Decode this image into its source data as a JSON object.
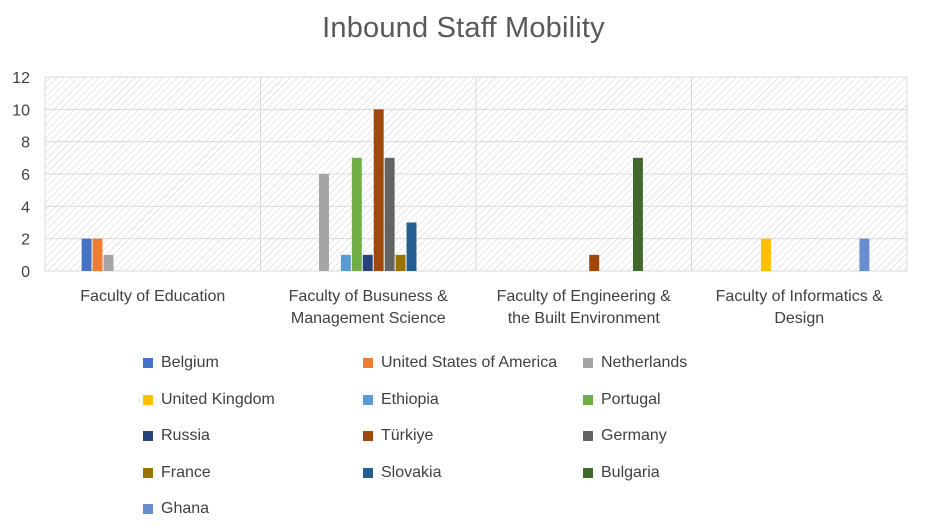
{
  "chart_data": {
    "type": "bar",
    "title": "Inbound Staff Mobility",
    "xlabel": "",
    "ylabel": "",
    "ylim": [
      0,
      12
    ],
    "yticks": [
      0,
      2,
      4,
      6,
      8,
      10,
      12
    ],
    "grid": true,
    "legend_position": "bottom",
    "categories": [
      "Faculty of Education",
      "Faculty of Busuness & Management Science",
      "Faculty of Engineering & the Built Environment",
      "Faculty of Informatics & Design"
    ],
    "series": [
      {
        "name": "Belgium",
        "color": "#4472C4",
        "values": [
          2,
          0,
          0,
          0
        ]
      },
      {
        "name": "United States of America",
        "color": "#ED7D31",
        "values": [
          2,
          0,
          0,
          0
        ]
      },
      {
        "name": "Netherlands",
        "color": "#A5A5A5",
        "values": [
          1,
          6,
          0,
          0
        ]
      },
      {
        "name": "United Kingdom",
        "color": "#FFC000",
        "values": [
          0,
          0,
          0,
          2
        ]
      },
      {
        "name": "Ethiopia",
        "color": "#5B9BD5",
        "values": [
          0,
          1,
          0,
          0
        ]
      },
      {
        "name": "Portugal",
        "color": "#70AD47",
        "values": [
          0,
          7,
          0,
          0
        ]
      },
      {
        "name": "Russia",
        "color": "#264478",
        "values": [
          0,
          1,
          0,
          0
        ]
      },
      {
        "name": "Türkiye",
        "color": "#9E480E",
        "values": [
          0,
          10,
          1,
          0
        ]
      },
      {
        "name": "Germany",
        "color": "#636363",
        "values": [
          0,
          7,
          0,
          0
        ]
      },
      {
        "name": "France",
        "color": "#997300",
        "values": [
          0,
          1,
          0,
          0
        ]
      },
      {
        "name": "Slovakia",
        "color": "#255E91",
        "values": [
          0,
          3,
          0,
          0
        ]
      },
      {
        "name": "Bulgaria",
        "color": "#43682B",
        "values": [
          0,
          0,
          7,
          0
        ]
      },
      {
        "name": "Ghana",
        "color": "#698ED0",
        "values": [
          0,
          0,
          0,
          2
        ]
      }
    ]
  },
  "category_label_lines": [
    [
      "Faculty of Education"
    ],
    [
      "Faculty of Busuness &",
      "Management Science"
    ],
    [
      "Faculty of Engineering &",
      "the Built Environment"
    ],
    [
      "Faculty of Informatics &",
      "Design"
    ]
  ]
}
